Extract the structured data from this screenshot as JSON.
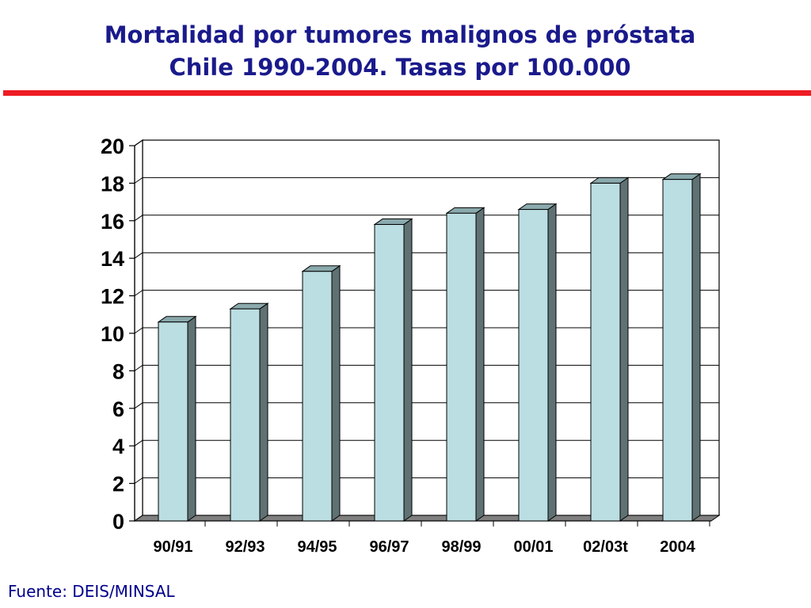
{
  "slide": {
    "title_line1": "Mortalidad por tumores malignos de próstata",
    "title_line2": "Chile 1990-2004. Tasas por 100.000",
    "source": "Fuente: DEIS/MINSAL",
    "accent_color": "#ee1c24",
    "title_color": "#1a1a8c"
  },
  "chart_data": {
    "type": "bar",
    "style": "3d",
    "title": "Mortalidad por tumores malignos de próstata Chile 1990-2004. Tasas por 100.000",
    "xlabel": "",
    "ylabel": "",
    "categories": [
      "90/91",
      "92/93",
      "94/95",
      "96/97",
      "98/99",
      "00/01",
      "02/03t",
      "2004"
    ],
    "values": [
      10.6,
      11.3,
      13.3,
      15.8,
      16.4,
      16.6,
      18.0,
      18.2
    ],
    "ylim": [
      0,
      20
    ],
    "yticks": [
      0,
      2,
      4,
      6,
      8,
      10,
      12,
      14,
      16,
      18,
      20
    ],
    "grid": true,
    "legend": "none",
    "bar_front_color": "#bbdee2",
    "bar_top_color": "#8aa9ac",
    "bar_side_color": "#5f7173",
    "floor_color": "#7f7f7f"
  }
}
